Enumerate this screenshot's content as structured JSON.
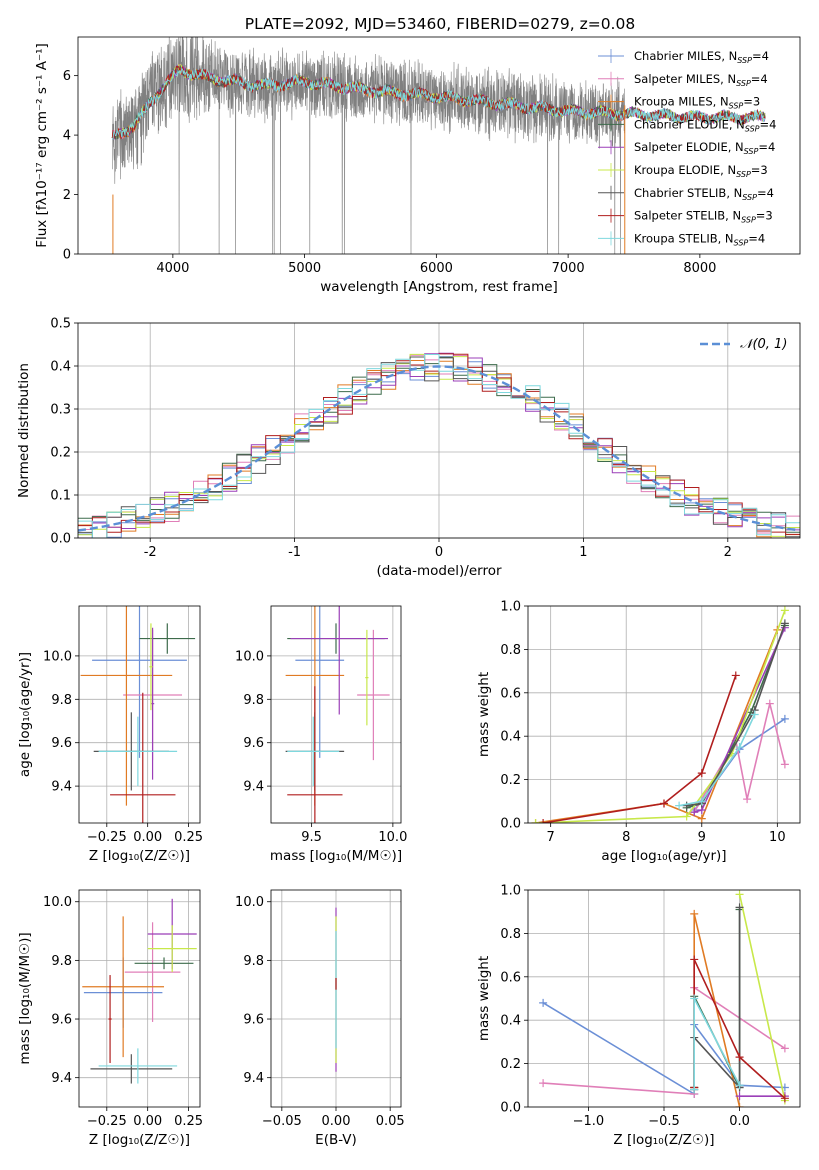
{
  "figure": {
    "title": "PLATE=2092, MJD=53460, FIBERID=0279, z=0.08"
  },
  "legend_entries": [
    {
      "label": "Chabrier MILES, N",
      "sub": "SSP",
      "suffix": "=4",
      "color": "#6b8fd6"
    },
    {
      "label": "Salpeter MILES, N",
      "sub": "SSP",
      "suffix": "=4",
      "color": "#e07fb8"
    },
    {
      "label": "Kroupa MILES, N",
      "sub": "SSP",
      "suffix": "=3",
      "color": "#e07b24"
    },
    {
      "label": "Chabrier ELODIE, N",
      "sub": "SSP",
      "suffix": "=4",
      "color": "#3d6b4b"
    },
    {
      "label": "Salpeter ELODIE, N",
      "sub": "SSP",
      "suffix": "=4",
      "color": "#9b3fb8"
    },
    {
      "label": "Kroupa ELODIE, N",
      "sub": "SSP",
      "suffix": "=3",
      "color": "#c8e84a"
    },
    {
      "label": "Chabrier STELIB, N",
      "sub": "SSP",
      "suffix": "=4",
      "color": "#555555"
    },
    {
      "label": "Salpeter STELIB, N",
      "sub": "SSP",
      "suffix": "=3",
      "color": "#b01e1e"
    },
    {
      "label": "Kroupa STELIB, N",
      "sub": "SSP",
      "suffix": "=4",
      "color": "#7fd8de"
    }
  ],
  "hist_legend": "𝒩(0, 1)",
  "chart_data": [
    {
      "id": "spectrum",
      "type": "line",
      "xlabel": "wavelength [Angstrom, rest frame]",
      "ylabel": "Flux [fλ10⁻¹⁷ erg cm⁻² s⁻¹ A⁻¹]",
      "xlim": [
        3280,
        8760
      ],
      "ylim": [
        0,
        7.3
      ],
      "xticks": [
        4000,
        5000,
        6000,
        7000,
        8000
      ],
      "yticks": [
        0,
        2,
        4,
        6
      ],
      "data_color": "#808080",
      "model_color": "#7fd8de",
      "data_range": [
        3540,
        7430
      ],
      "model_range": [
        3540,
        8500
      ],
      "continuum_knots": [
        [
          3540,
          3.9
        ],
        [
          3700,
          4.3
        ],
        [
          3900,
          5.5
        ],
        [
          4050,
          6.2
        ],
        [
          4300,
          5.9
        ],
        [
          4700,
          5.65
        ],
        [
          5000,
          5.8
        ],
        [
          5500,
          5.5
        ],
        [
          6000,
          5.3
        ],
        [
          6500,
          5.05
        ],
        [
          7000,
          4.8
        ],
        [
          7500,
          4.7
        ],
        [
          8000,
          4.6
        ],
        [
          8500,
          4.6
        ]
      ],
      "grid": false
    },
    {
      "id": "residual_histogram",
      "type": "histogram",
      "xlabel": "(data-model)/error",
      "ylabel": "Normed distribution",
      "xlim": [
        -2.5,
        2.5
      ],
      "ylim": [
        0,
        0.5
      ],
      "xticks": [
        -2,
        -1,
        0,
        1,
        2
      ],
      "yticks": [
        0,
        0.1,
        0.2,
        0.3,
        0.4,
        0.5
      ],
      "bin_width": 0.1,
      "series_seeds": [
        3,
        7,
        11,
        17,
        23,
        29,
        31,
        37,
        41
      ],
      "gaussian": {
        "mu": 0,
        "sigma": 1,
        "color": "#5b8fd6"
      },
      "grid": true
    },
    {
      "id": "age_vs_Z",
      "type": "errorbar",
      "xlabel": "Z [log₁₀(Z/Z☉)]",
      "ylabel": "age  [log₁₀(age/yr)]",
      "xlim": [
        -0.42,
        0.32
      ],
      "ylim": [
        9.23,
        10.23
      ],
      "xticks": [
        -0.25,
        0.0,
        0.25
      ],
      "xticklabels": [
        "−0.25",
        "0.00",
        "0.25"
      ],
      "yticks": [
        9.4,
        9.6,
        9.8,
        10.0
      ],
      "points": [
        {
          "x": -0.05,
          "y": 9.98,
          "xerr": 0.29,
          "yerr": 0.45,
          "c": 0
        },
        {
          "x": 0.03,
          "y": 9.82,
          "xerr": 0.18,
          "yerr": 0.3,
          "c": 1
        },
        {
          "x": -0.13,
          "y": 9.91,
          "xerr": 0.28,
          "yerr": 0.6,
          "c": 2
        },
        {
          "x": 0.12,
          "y": 10.08,
          "xerr": 0.17,
          "yerr": 0.07,
          "c": 3
        },
        {
          "x": 0.03,
          "y": 9.78,
          "xerr": 0.01,
          "yerr": 0.35,
          "c": 4
        },
        {
          "x": 0.02,
          "y": 9.95,
          "xerr": 0.01,
          "yerr": 0.2,
          "c": 5
        },
        {
          "x": -0.1,
          "y": 9.56,
          "xerr": 0.23,
          "yerr": 0.18,
          "c": 6
        },
        {
          "x": -0.03,
          "y": 9.36,
          "xerr": 0.2,
          "yerr": 0.47,
          "c": 7
        },
        {
          "x": -0.06,
          "y": 9.56,
          "xerr": 0.24,
          "yerr": 0.16,
          "c": 8
        }
      ],
      "grid": true
    },
    {
      "id": "age_vs_mass",
      "type": "errorbar",
      "xlabel": "mass [log₁₀(M/M☉)]",
      "ylabel": "",
      "xlim": [
        9.25,
        10.05
      ],
      "ylim": [
        9.23,
        10.23
      ],
      "xticks": [
        9.5,
        10.0
      ],
      "xticklabels": [
        "9.5",
        "10.0"
      ],
      "yticks": [
        9.4,
        9.6,
        9.8,
        10.0
      ],
      "points": [
        {
          "x": 9.55,
          "y": 9.98,
          "xerr": 0.15,
          "yerr": 0.45,
          "c": 0
        },
        {
          "x": 9.88,
          "y": 9.82,
          "xerr": 0.1,
          "yerr": 0.3,
          "c": 1
        },
        {
          "x": 9.52,
          "y": 9.91,
          "xerr": 0.18,
          "yerr": 0.6,
          "c": 2
        },
        {
          "x": 9.65,
          "y": 10.08,
          "xerr": 0.3,
          "yerr": 0.07,
          "c": 3
        },
        {
          "x": 9.67,
          "y": 10.08,
          "xerr": 0.3,
          "yerr": 0.35,
          "c": 4
        },
        {
          "x": 9.84,
          "y": 9.9,
          "xerr": 0.01,
          "yerr": 0.22,
          "c": 5
        },
        {
          "x": 9.52,
          "y": 9.56,
          "xerr": 0.18,
          "yerr": 0.18,
          "c": 6
        },
        {
          "x": 9.52,
          "y": 9.36,
          "xerr": 0.17,
          "yerr": 0.5,
          "c": 7
        },
        {
          "x": 9.51,
          "y": 9.56,
          "xerr": 0.16,
          "yerr": 0.16,
          "c": 8
        }
      ],
      "grid": true
    },
    {
      "id": "weight_vs_age",
      "type": "line",
      "xlabel": "age  [log₁₀(age/yr)]",
      "ylabel": "mass weight",
      "xlim": [
        6.7,
        10.3
      ],
      "ylim": [
        0,
        1
      ],
      "xticks": [
        7,
        8,
        9,
        10
      ],
      "yticks": [
        0.0,
        0.2,
        0.4,
        0.6,
        0.8,
        1.0
      ],
      "series": [
        {
          "c": 0,
          "x": [
            8.9,
            9.0,
            9.5,
            10.1
          ],
          "y": [
            0.06,
            0.1,
            0.34,
            0.48
          ]
        },
        {
          "c": 1,
          "x": [
            8.9,
            9.45,
            9.6,
            9.9,
            10.1
          ],
          "y": [
            0.05,
            0.38,
            0.11,
            0.55,
            0.27
          ]
        },
        {
          "c": 2,
          "x": [
            6.8,
            8.5,
            9.0,
            10.0
          ],
          "y": [
            0.0,
            0.09,
            0.02,
            0.89
          ]
        },
        {
          "c": 3,
          "x": [
            8.8,
            9.0,
            9.65,
            10.1
          ],
          "y": [
            0.07,
            0.09,
            0.51,
            0.91
          ]
        },
        {
          "c": 4,
          "x": [
            8.9,
            9.0,
            10.1
          ],
          "y": [
            0.05,
            0.06,
            0.9
          ]
        },
        {
          "c": 5,
          "x": [
            6.8,
            8.8,
            9.4,
            10.1
          ],
          "y": [
            0.0,
            0.03,
            0.32,
            0.98
          ]
        },
        {
          "c": 6,
          "x": [
            8.8,
            9.0,
            9.7,
            10.1
          ],
          "y": [
            0.08,
            0.09,
            0.52,
            0.92
          ]
        },
        {
          "c": 7,
          "x": [
            6.9,
            8.5,
            9.0,
            9.45
          ],
          "y": [
            0.0,
            0.09,
            0.23,
            0.68
          ]
        },
        {
          "c": 8,
          "x": [
            8.7,
            9.0,
            9.5,
            9.7
          ],
          "y": [
            0.08,
            0.1,
            0.35,
            0.5
          ]
        }
      ],
      "grid": true
    },
    {
      "id": "mass_vs_Z",
      "type": "errorbar",
      "xlabel": "Z [log₁₀(Z/Z☉)]",
      "ylabel": "mass [log₁₀(M/M☉)]",
      "xlim": [
        -0.42,
        0.32
      ],
      "ylim": [
        9.3,
        10.04
      ],
      "xticks": [
        -0.25,
        0.0,
        0.25
      ],
      "xticklabels": [
        "−0.25",
        "0.00",
        "0.25"
      ],
      "yticks": [
        9.4,
        9.6,
        9.8,
        10.0
      ],
      "points": [
        {
          "x": -0.15,
          "y": 9.69,
          "xerr": 0.24,
          "yerr": 0.12,
          "c": 0
        },
        {
          "x": 0.03,
          "y": 9.76,
          "xerr": 0.17,
          "yerr": 0.17,
          "c": 1
        },
        {
          "x": -0.15,
          "y": 9.71,
          "xerr": 0.25,
          "yerr": 0.24,
          "c": 2
        },
        {
          "x": 0.1,
          "y": 9.79,
          "xerr": 0.18,
          "yerr": 0.02,
          "c": 3
        },
        {
          "x": 0.15,
          "y": 9.89,
          "xerr": 0.15,
          "yerr": 0.12,
          "c": 4
        },
        {
          "x": 0.15,
          "y": 9.84,
          "xerr": 0.15,
          "yerr": 0.08,
          "c": 5
        },
        {
          "x": -0.1,
          "y": 9.43,
          "xerr": 0.25,
          "yerr": 0.05,
          "c": 6
        },
        {
          "x": -0.23,
          "y": 9.6,
          "xerr": 0.01,
          "yerr": 0.15,
          "c": 7
        },
        {
          "x": -0.06,
          "y": 9.44,
          "xerr": 0.24,
          "yerr": 0.06,
          "c": 8
        }
      ],
      "grid": true
    },
    {
      "id": "mass_vs_ebv",
      "type": "errorbar",
      "xlabel": "E(B-V)",
      "ylabel": "",
      "xlim": [
        -0.06,
        0.06
      ],
      "ylim": [
        9.3,
        10.04
      ],
      "xticks": [
        -0.05,
        0.0,
        0.05
      ],
      "xticklabels": [
        "−0.05",
        "0.00",
        "0.05"
      ],
      "yticks": [
        9.4,
        9.6,
        9.8,
        10.0
      ],
      "points": [
        {
          "x": 0,
          "y": 9.7,
          "xerr": 0,
          "yerr": 0.28,
          "c": 4
        },
        {
          "x": 0,
          "y": 9.7,
          "xerr": 0,
          "yerr": 0.25,
          "c": 5
        },
        {
          "x": 0,
          "y": 9.7,
          "xerr": 0,
          "yerr": 0.2,
          "c": 8
        },
        {
          "x": 0,
          "y": 9.72,
          "xerr": 0,
          "yerr": 0.02,
          "c": 7
        }
      ],
      "grid": true
    },
    {
      "id": "weight_vs_Z",
      "type": "line",
      "xlabel": "Z [log₁₀(Z/Z☉)]",
      "ylabel": "mass weight",
      "xlim": [
        -1.4,
        0.4
      ],
      "ylim": [
        0,
        1
      ],
      "xticks": [
        -1.0,
        -0.5,
        0.0
      ],
      "xticklabels": [
        "−1.0",
        "−0.5",
        "0.0"
      ],
      "yticks": [
        0.0,
        0.2,
        0.4,
        0.6,
        0.8,
        1.0
      ],
      "series": [
        {
          "c": 0,
          "x": [
            -1.3,
            -0.3,
            -0.3,
            0.0,
            0.3
          ],
          "y": [
            0.48,
            0.06,
            0.38,
            0.1,
            0.09
          ]
        },
        {
          "c": 1,
          "x": [
            -1.3,
            -0.3,
            -0.3,
            0.3
          ],
          "y": [
            0.11,
            0.06,
            0.55,
            0.27
          ]
        },
        {
          "c": 2,
          "x": [
            -0.3,
            -0.3,
            0.0
          ],
          "y": [
            0.09,
            0.89,
            0.0
          ]
        },
        {
          "c": 3,
          "x": [
            -0.3,
            -0.3,
            0.0,
            0.0
          ],
          "y": [
            0.09,
            0.51,
            0.09,
            0.91
          ]
        },
        {
          "c": 4,
          "x": [
            0.0,
            0.3
          ],
          "y": [
            0.05,
            0.05
          ]
        },
        {
          "c": 5,
          "x": [
            0.0,
            0.3
          ],
          "y": [
            0.98,
            0.03
          ]
        },
        {
          "c": 6,
          "x": [
            -0.3,
            -0.3,
            0.0,
            0.0
          ],
          "y": [
            0.08,
            0.32,
            0.09,
            0.92
          ]
        },
        {
          "c": 7,
          "x": [
            -0.3,
            -0.3,
            0.0,
            0.3
          ],
          "y": [
            0.09,
            0.68,
            0.23,
            0.04
          ]
        },
        {
          "c": 8,
          "x": [
            -0.3,
            -0.3,
            0.0
          ],
          "y": [
            0.08,
            0.5,
            0.1
          ]
        }
      ],
      "grid": true
    }
  ]
}
